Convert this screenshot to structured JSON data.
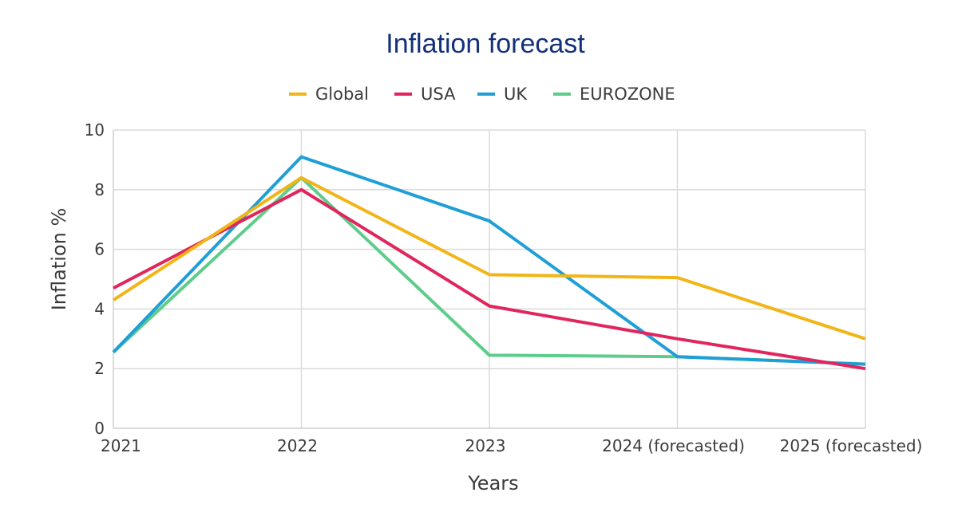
{
  "chart_data": {
    "type": "line",
    "title": "Inflation forecast",
    "xlabel": "Years",
    "ylabel": "Inflation %",
    "categories": [
      "2021",
      "2022",
      "2023",
      "2024 (forecasted)",
      "2025 (forecasted)"
    ],
    "ylim": [
      0,
      10
    ],
    "yticks": [
      0,
      2,
      4,
      6,
      8,
      10
    ],
    "grid": {
      "horizontal": true,
      "vertical": true
    },
    "legend_position": "top",
    "series": [
      {
        "name": "Global",
        "color": "#f2b518",
        "values": [
          4.3,
          8.4,
          5.15,
          5.05,
          3.0
        ]
      },
      {
        "name": "USA",
        "color": "#e0265c",
        "values": [
          4.7,
          8.0,
          4.1,
          3.0,
          2.0
        ]
      },
      {
        "name": "UK",
        "color": "#1f9fd6",
        "values": [
          2.55,
          9.1,
          6.95,
          2.4,
          2.15
        ]
      },
      {
        "name": "EUROZONE",
        "color": "#5ecc8a",
        "values": [
          2.55,
          8.4,
          2.45,
          2.4,
          2.15
        ]
      }
    ]
  }
}
